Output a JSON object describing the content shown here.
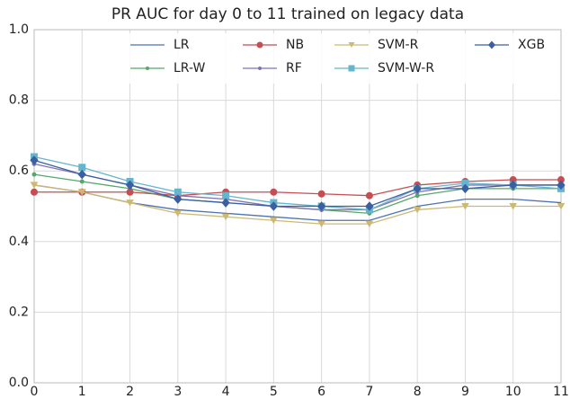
{
  "chart_data": {
    "type": "line",
    "title": "PR AUC for day 0 to 11 trained on legacy data",
    "x": [
      0,
      1,
      2,
      3,
      4,
      5,
      6,
      7,
      8,
      9,
      10,
      11
    ],
    "xlim": [
      0,
      11
    ],
    "xticks": [
      0,
      1,
      2,
      3,
      4,
      5,
      6,
      7,
      8,
      9,
      10,
      11
    ],
    "ylim": [
      0,
      1
    ],
    "yticks": [
      {
        "value": 0,
        "label": "0.0"
      },
      0.2,
      0.4,
      0.6,
      0.8,
      {
        "value": 1,
        "label": "1.0"
      }
    ],
    "grid": true,
    "legend": "top",
    "series": [
      {
        "name": "LR",
        "color": "#4c72b0",
        "marker": "none",
        "values": [
          0.56,
          0.54,
          0.51,
          0.49,
          0.48,
          0.47,
          0.46,
          0.46,
          0.5,
          0.52,
          0.52,
          0.51
        ]
      },
      {
        "name": "LR-W",
        "color": "#55a868",
        "marker": "dot",
        "values": [
          0.59,
          0.57,
          0.55,
          0.52,
          0.51,
          0.5,
          0.49,
          0.48,
          0.53,
          0.55,
          0.55,
          0.55
        ]
      },
      {
        "name": "NB",
        "color": "#c44e52",
        "marker": "circle",
        "values": [
          0.54,
          0.54,
          0.54,
          0.53,
          0.54,
          0.54,
          0.535,
          0.53,
          0.56,
          0.57,
          0.575,
          0.575
        ]
      },
      {
        "name": "RF",
        "color": "#8172b2",
        "marker": "dot",
        "values": [
          0.62,
          0.59,
          0.56,
          0.53,
          0.52,
          0.5,
          0.49,
          0.49,
          0.54,
          0.56,
          0.56,
          0.56
        ]
      },
      {
        "name": "SVM-R",
        "color": "#ccb974",
        "marker": "tri",
        "values": [
          0.56,
          0.54,
          0.51,
          0.48,
          0.47,
          0.46,
          0.45,
          0.45,
          0.49,
          0.5,
          0.5,
          0.5
        ]
      },
      {
        "name": "SVM-W-R",
        "color": "#64b5cd",
        "marker": "square",
        "values": [
          0.64,
          0.61,
          0.57,
          0.54,
          0.53,
          0.51,
          0.5,
          0.49,
          0.55,
          0.565,
          0.56,
          0.55
        ]
      },
      {
        "name": "XGB",
        "color": "#3b5fa0",
        "marker": "diamond",
        "values": [
          0.63,
          0.59,
          0.56,
          0.52,
          0.51,
          0.5,
          0.5,
          0.5,
          0.55,
          0.55,
          0.56,
          0.56
        ]
      }
    ]
  }
}
